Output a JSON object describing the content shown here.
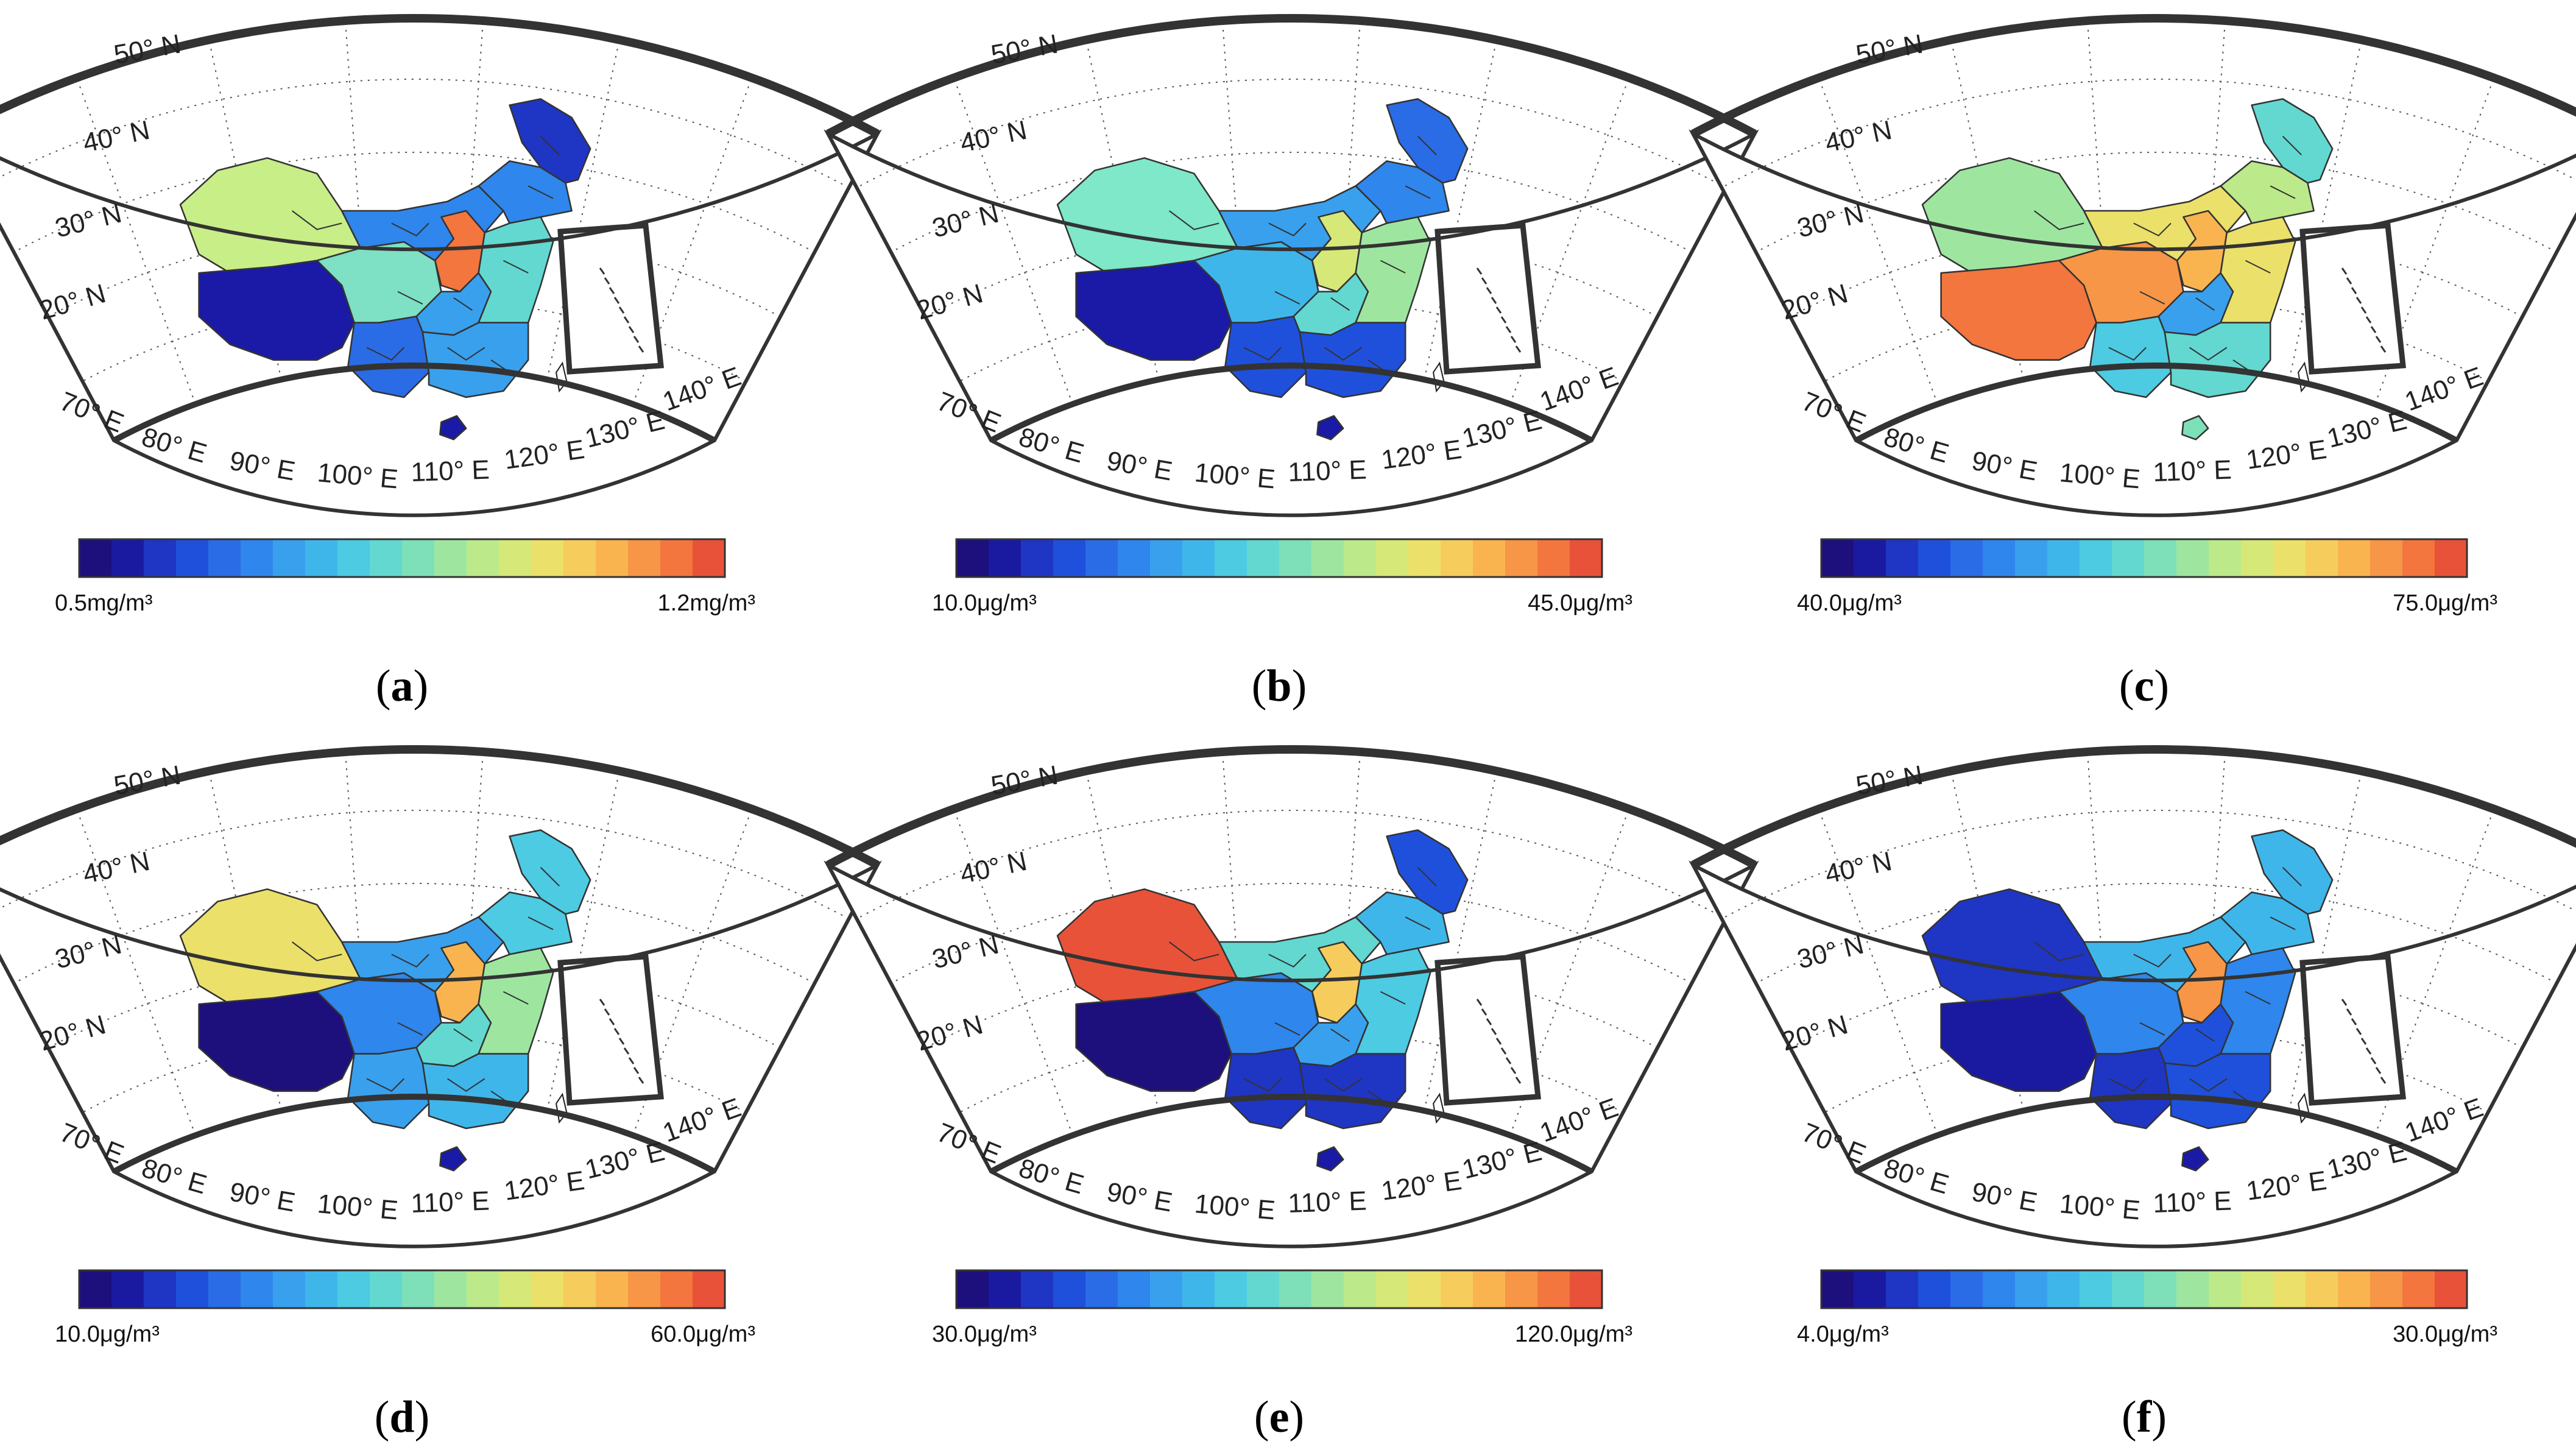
{
  "common": {
    "lat_labels": [
      "50° N",
      "40° N",
      "30° N",
      "20° N"
    ],
    "lon_labels": [
      "70° E",
      "80° E",
      "90° E",
      "100° E",
      "110° E",
      "120° E",
      "130° E",
      "140° E"
    ],
    "colormap": [
      "#1d0f7c",
      "#1a1aa0",
      "#1f35c4",
      "#1f50dc",
      "#2a6ce6",
      "#2f86ec",
      "#39a0ee",
      "#3fb6ea",
      "#4ccbe2",
      "#62d8d0",
      "#7ee0b8",
      "#9ee6a0",
      "#bce98a",
      "#d6e878",
      "#ebe06a",
      "#f6cd5c",
      "#f9b450",
      "#f79646",
      "#f2763e",
      "#e85239"
    ],
    "outline_color": "#333333"
  },
  "panels": [
    {
      "caption_open": "(",
      "caption_letter": "a",
      "caption_close": ")",
      "min_label": "0.5mg/m³",
      "max_label": "1.2mg/m³",
      "colors": {
        "xinjiang": "#c8ee88",
        "tibet": "#1a1aa6",
        "qinghai": "#7ee0c4",
        "northwest": "#2f86ec",
        "northeast": "#2f86ec",
        "heilongjiang": "#1f35c4",
        "north_china": "#f2763e",
        "central": "#39a0ee",
        "south": "#39a0ee",
        "southwest": "#2a6ce6",
        "east": "#62d8d0",
        "hainan": "#1a1aa6"
      }
    },
    {
      "caption_open": "(",
      "caption_letter": "b",
      "caption_close": ")",
      "min_label": "10.0μg/m³",
      "max_label": "45.0μg/m³",
      "colors": {
        "xinjiang": "#7ee8c8",
        "tibet": "#1a1aa6",
        "qinghai": "#3fb6ea",
        "northwest": "#39a0ee",
        "northeast": "#2f86ec",
        "heilongjiang": "#2a6ce6",
        "north_china": "#d6e878",
        "central": "#62d8d0",
        "south": "#1f50dc",
        "southwest": "#1f50dc",
        "east": "#9ee6a0",
        "hainan": "#1a1aa6"
      }
    },
    {
      "caption_open": "(",
      "caption_letter": "c",
      "caption_close": ")",
      "min_label": "40.0μg/m³",
      "max_label": "75.0μg/m³",
      "colors": {
        "xinjiang": "#9ee6a0",
        "tibet": "#f2763e",
        "qinghai": "#f79646",
        "northwest": "#ebe06a",
        "northeast": "#bce98a",
        "heilongjiang": "#62d8d0",
        "north_china": "#f9b450",
        "central": "#39a0ee",
        "south": "#62d8d0",
        "southwest": "#4ccbe2",
        "east": "#ebe06a",
        "hainan": "#7ee0b8"
      }
    },
    {
      "caption_open": "(",
      "caption_letter": "d",
      "caption_close": ")",
      "min_label": "10.0μg/m³",
      "max_label": "60.0μg/m³",
      "colors": {
        "xinjiang": "#ebe06a",
        "tibet": "#1d0f7c",
        "qinghai": "#2f86ec",
        "northwest": "#39a0ee",
        "northeast": "#4ccbe2",
        "heilongjiang": "#4ccbe2",
        "north_china": "#f9b450",
        "central": "#62d8d0",
        "south": "#3fb6ea",
        "southwest": "#39a0ee",
        "east": "#9ee6a0",
        "hainan": "#1a1aa6"
      }
    },
    {
      "caption_open": "(",
      "caption_letter": "e",
      "caption_close": ")",
      "min_label": "30.0μg/m³",
      "max_label": "120.0μg/m³",
      "colors": {
        "xinjiang": "#e85239",
        "tibet": "#1d0f7c",
        "qinghai": "#2f86ec",
        "northwest": "#62d8d0",
        "northeast": "#3fb6ea",
        "heilongjiang": "#1f50dc",
        "north_china": "#f6cd5c",
        "central": "#39a0ee",
        "south": "#1f35c4",
        "southwest": "#1f35c4",
        "east": "#4ccbe2",
        "hainan": "#1a1aa6"
      }
    },
    {
      "caption_open": "(",
      "caption_letter": "f",
      "caption_close": ")",
      "min_label": "4.0μg/m³",
      "max_label": "30.0μg/m³",
      "colors": {
        "xinjiang": "#1f35c4",
        "tibet": "#1a1aa0",
        "qinghai": "#2f86ec",
        "northwest": "#3fb6ea",
        "northeast": "#3fb6ea",
        "heilongjiang": "#3fb6ea",
        "north_china": "#f79646",
        "central": "#1f50dc",
        "south": "#1f50dc",
        "southwest": "#1f35c4",
        "east": "#2f86ec",
        "hainan": "#1a1aa6"
      }
    }
  ]
}
